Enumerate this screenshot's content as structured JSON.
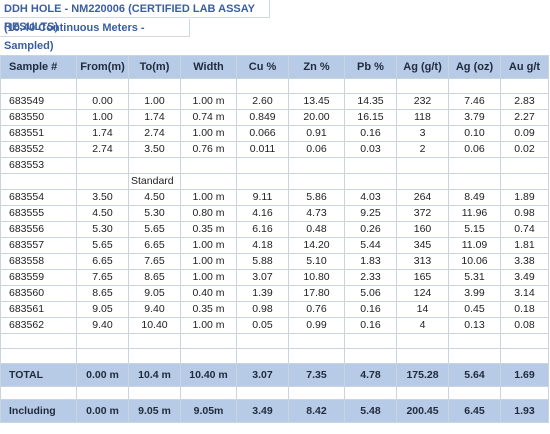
{
  "title": "DDH HOLE - NM220006  (CERTIFIED LAB ASSAY RESULTS)",
  "subtitle": "(10.40 Continuous Meters - Sampled)",
  "columns": [
    "Sample #",
    "From(m)",
    "To(m)",
    "Width",
    "Cu %",
    "Zn %",
    "Pb %",
    "Ag (g/t)",
    "Ag (oz)",
    "Au g/t"
  ],
  "rows": [
    [
      "683549",
      "0.00",
      "1.00",
      "1.00 m",
      "2.60",
      "13.45",
      "14.35",
      "232",
      "7.46",
      "2.83"
    ],
    [
      "683550",
      "1.00",
      "1.74",
      "0.74 m",
      "0.849",
      "20.00",
      "16.15",
      "118",
      "3.79",
      "2.27"
    ],
    [
      "683551",
      "1.74",
      "2.74",
      "1.00 m",
      "0.066",
      "0.91",
      "0.16",
      "3",
      "0.10",
      "0.09"
    ],
    [
      "683552",
      "2.74",
      "3.50",
      "0.76 m",
      "0.011",
      "0.06",
      "0.03",
      "2",
      "0.06",
      "0.02"
    ],
    [
      "683553",
      "",
      "",
      "",
      "",
      "",
      "",
      "",
      "",
      ""
    ],
    [
      "683554",
      "3.50",
      "4.50",
      "1.00 m",
      "9.11",
      "5.86",
      "4.03",
      "264",
      "8.49",
      "1.89"
    ],
    [
      "683555",
      "4.50",
      "5.30",
      "0.80 m",
      "4.16",
      "4.73",
      "9.25",
      "372",
      "11.96",
      "0.98"
    ],
    [
      "683556",
      "5.30",
      "5.65",
      "0.35 m",
      "6.16",
      "0.48",
      "0.26",
      "160",
      "5.15",
      "0.74"
    ],
    [
      "683557",
      "5.65",
      "6.65",
      "1.00 m",
      "4.18",
      "14.20",
      "5.44",
      "345",
      "11.09",
      "1.81"
    ],
    [
      "683558",
      "6.65",
      "7.65",
      "1.00 m",
      "5.88",
      "5.10",
      "1.83",
      "313",
      "10.06",
      "3.38"
    ],
    [
      "683559",
      "7.65",
      "8.65",
      "1.00 m",
      "3.07",
      "10.80",
      "2.33",
      "165",
      "5.31",
      "3.49"
    ],
    [
      "683560",
      "8.65",
      "9.05",
      "0.40 m",
      "1.39",
      "17.80",
      "5.06",
      "124",
      "3.99",
      "3.14"
    ],
    [
      "683561",
      "9.05",
      "9.40",
      "0.35 m",
      "0.98",
      "0.76",
      "0.16",
      "14",
      "0.45",
      "0.18"
    ],
    [
      "683562",
      "9.40",
      "10.40",
      "1.00 m",
      "0.05",
      "0.99",
      "0.16",
      "4",
      "0.13",
      "0.08"
    ]
  ],
  "standard_note": "Standard",
  "total": [
    "TOTAL",
    "0.00 m",
    "10.4 m",
    "10.40 m",
    "3.07",
    "7.35",
    "4.78",
    "175.28",
    "5.64",
    "1.69"
  ],
  "including": [
    "Including",
    "0.00 m",
    "9.05 m",
    "9.05m",
    "3.49",
    "8.42",
    "5.48",
    "200.45",
    "6.45",
    "1.93"
  ],
  "colors": {
    "title_text": "#3a5f9f",
    "header_fill": "#b7cbe6",
    "grid": "#c9d4df"
  }
}
